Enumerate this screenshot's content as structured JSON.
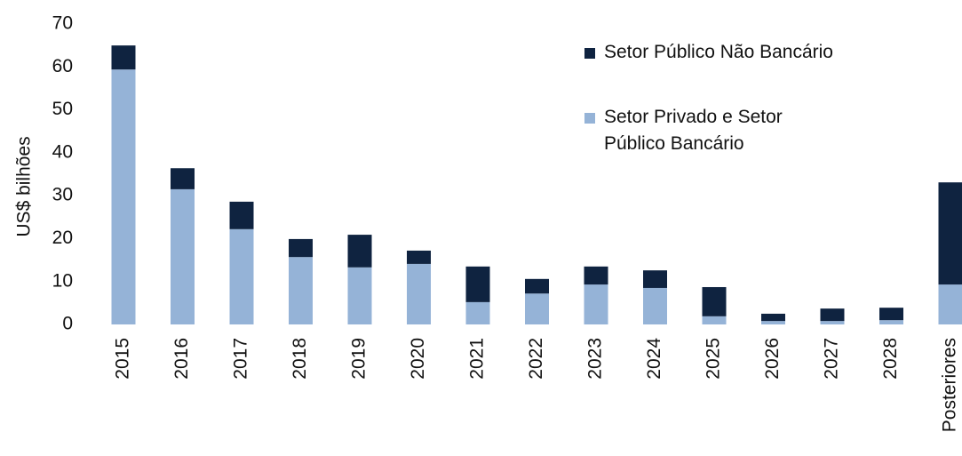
{
  "chart_data": {
    "type": "stacked_bar",
    "y_label": "US$ bilhões",
    "categories": [
      "2015",
      "2016",
      "2017",
      "2018",
      "2019",
      "2020",
      "2021",
      "2022",
      "2023",
      "2024",
      "2025",
      "2026",
      "2027",
      "2028",
      "Posteriores"
    ],
    "series": [
      {
        "name": "Setor Público Não Bancário",
        "color": "#0f2340",
        "values": [
          5.6,
          4.9,
          6.4,
          4.2,
          7.6,
          3.1,
          8.3,
          3.4,
          4.2,
          4.1,
          6.8,
          1.7,
          2.9,
          2.9,
          23.8
        ]
      },
      {
        "name": "Setor Privado e Setor Público Bancário",
        "color": "#95b3d7",
        "values": [
          59.4,
          31.5,
          22.2,
          15.7,
          13.3,
          14.1,
          5.2,
          7.2,
          9.3,
          8.5,
          1.9,
          0.8,
          0.8,
          1.0,
          9.3
        ]
      }
    ],
    "ylim": [
      0,
      70
    ],
    "yticks": [
      0,
      10,
      20,
      30,
      40,
      50,
      60,
      70
    ],
    "grid": false,
    "legend": "top-right"
  }
}
